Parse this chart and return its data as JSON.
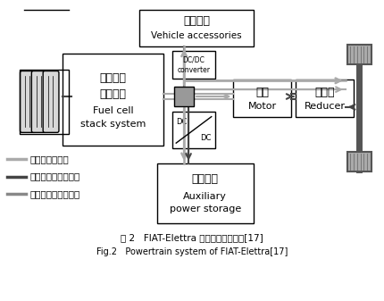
{
  "title_cn": "图 2   FIAT-Elettra 动力传动系统结构[17]",
  "title_en": "Fig.2   Powertrain system of FIAT-Elettra[17]",
  "bg_color": "#ffffff",
  "legend": [
    {
      "color": "#aaaaaa",
      "text": "— 燃料电池的能量"
    },
    {
      "color": "#333333",
      "text": "— 辅助储能系统的能量"
    },
    {
      "color": "#888888",
      "text": "— 车辆反馈回收的能量"
    }
  ],
  "gray_line": "#aaaaaa",
  "dark_line": "#333333",
  "mid_line": "#888888"
}
